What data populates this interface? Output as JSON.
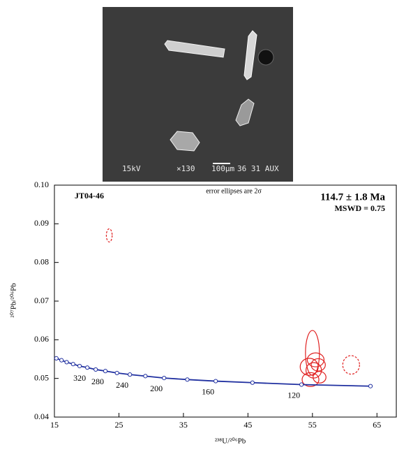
{
  "image": {
    "caption_parts": [
      "15kV",
      "×130",
      "100μm",
      "36 31 AUX"
    ]
  },
  "chart_data": {
    "type": "scatter",
    "sample": "JT04-46",
    "note": "error ellipses are 2σ",
    "age": "114.7 ± 1.8 Ma",
    "mswd": "MSWD = 0.75",
    "x_label": "²³⁸U/²⁰⁶Pb",
    "y_label": "²⁰⁷Pb/²⁰⁶Pb",
    "xlim": [
      15,
      68
    ],
    "xticks": [
      15,
      25,
      35,
      45,
      55,
      65
    ],
    "ylim": [
      0.04,
      0.1
    ],
    "yticks": [
      0.04,
      0.05,
      0.06,
      0.07,
      0.08,
      0.09,
      {
        "value": 0.1,
        "label": "0.10"
      }
    ],
    "series": [
      {
        "color": "#e02020",
        "dashed": false,
        "x": [
          55.0,
          54.5,
          55.5,
          54.7,
          55.2,
          55.9,
          56.1
        ],
        "y": [
          0.0566,
          0.053,
          0.0548,
          0.0497,
          0.0521,
          0.0535,
          0.0503
        ],
        "x_err": [
          1.08,
          1.4,
          1.3,
          1.3,
          1.2,
          1.1,
          1.0
        ],
        "y_err": [
          0.0058,
          0.0022,
          0.0018,
          0.0018,
          0.002,
          0.0016,
          0.0015
        ]
      },
      {
        "color": "#e02020",
        "dashed": true,
        "x": [
          23.5,
          61.0
        ],
        "y": [
          0.087,
          0.0535
        ],
        "x_err": [
          0.45,
          1.3
        ],
        "y_err": [
          0.0017,
          0.0024
        ]
      }
    ],
    "concordia": {
      "color": "#2030a0",
      "x": [
        64.0,
        53.3,
        45.7,
        40.0,
        35.6,
        32.0,
        29.1,
        26.7,
        24.7,
        22.9,
        21.4,
        20.1,
        18.9,
        17.9,
        16.9,
        16.1,
        15.3
      ],
      "y": [
        0.048,
        0.0484,
        0.0489,
        0.0493,
        0.0497,
        0.0501,
        0.0506,
        0.051,
        0.0514,
        0.0519,
        0.0523,
        0.0528,
        0.0532,
        0.0537,
        0.0542,
        0.0547,
        0.0552
      ],
      "ages": [
        null,
        120,
        null,
        160,
        null,
        200,
        null,
        240,
        null,
        280,
        null,
        320,
        null,
        null,
        null,
        null,
        null
      ]
    }
  }
}
